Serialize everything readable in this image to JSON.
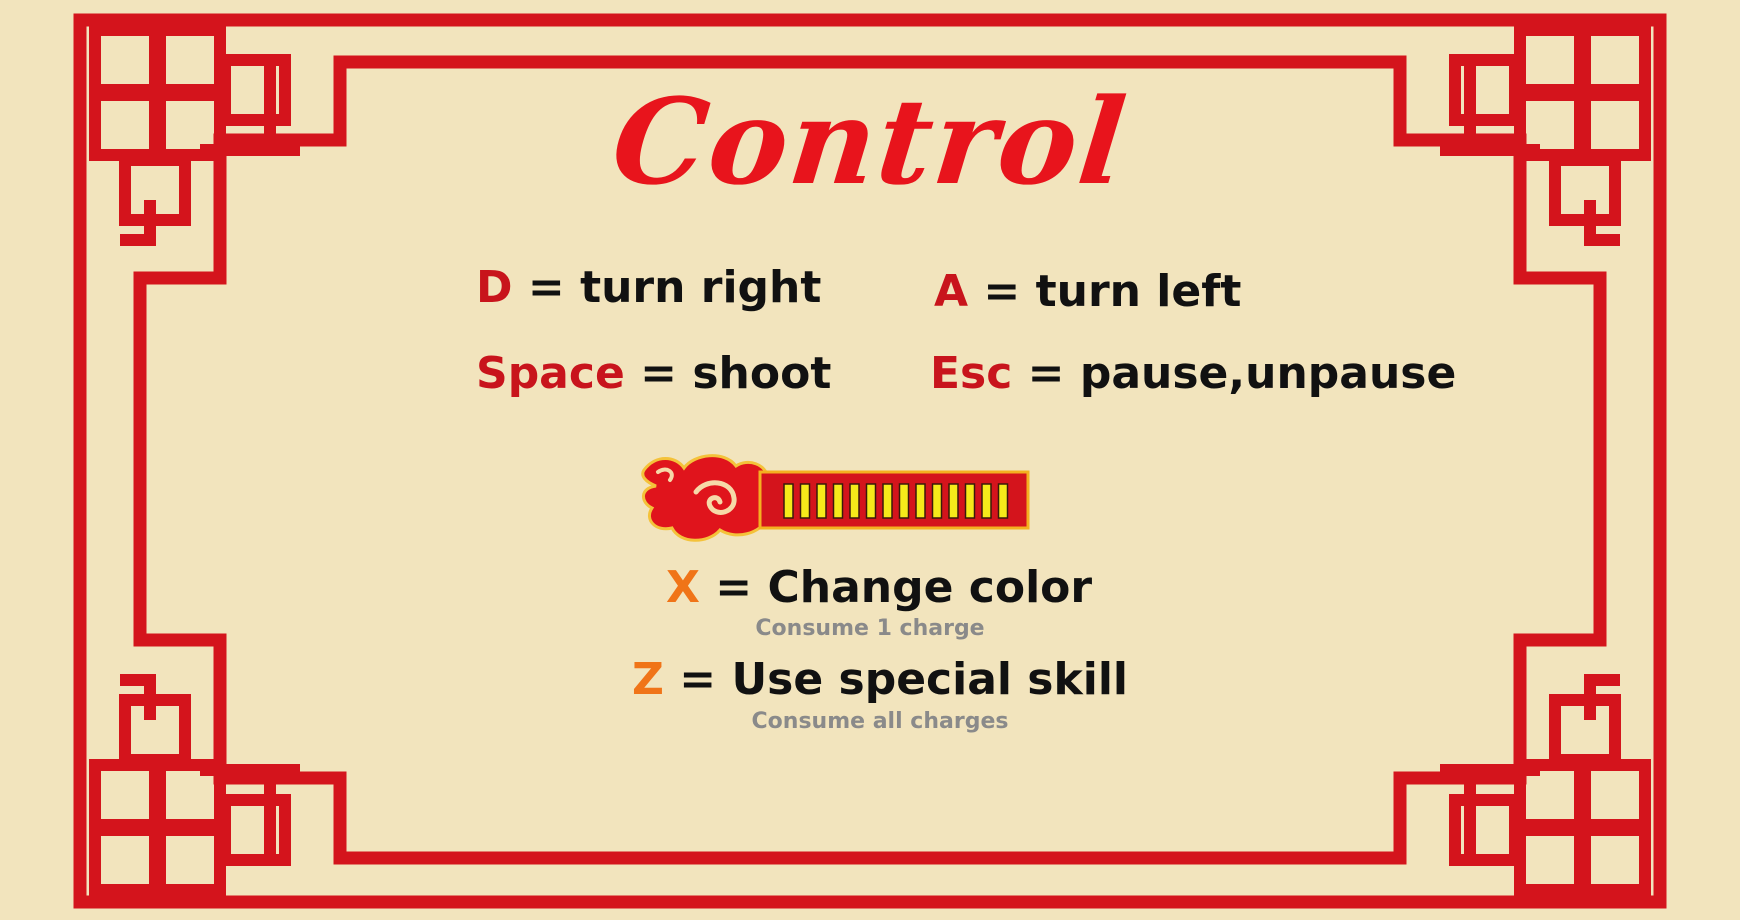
{
  "title": "Control",
  "controls": [
    {
      "key": "D",
      "action": "turn right"
    },
    {
      "key": "A",
      "action": "turn left"
    },
    {
      "key": "Space",
      "action": "shoot"
    },
    {
      "key": "Esc",
      "action": "pause,unpause"
    }
  ],
  "skills": [
    {
      "key": "X",
      "action": "Change color",
      "note": "Consume 1 charge"
    },
    {
      "key": "Z",
      "action": "Use special skill",
      "note": "Consume all charges"
    }
  ],
  "separator": "=",
  "charge_bar": {
    "icon": "cloud-icon",
    "charges": 14
  },
  "colors": {
    "background": "#f2e4bd",
    "frame": "#d4141c",
    "title": "#e8141c",
    "key_red": "#c8141c",
    "key_orange": "#f07418",
    "note": "#8a8a8a"
  }
}
